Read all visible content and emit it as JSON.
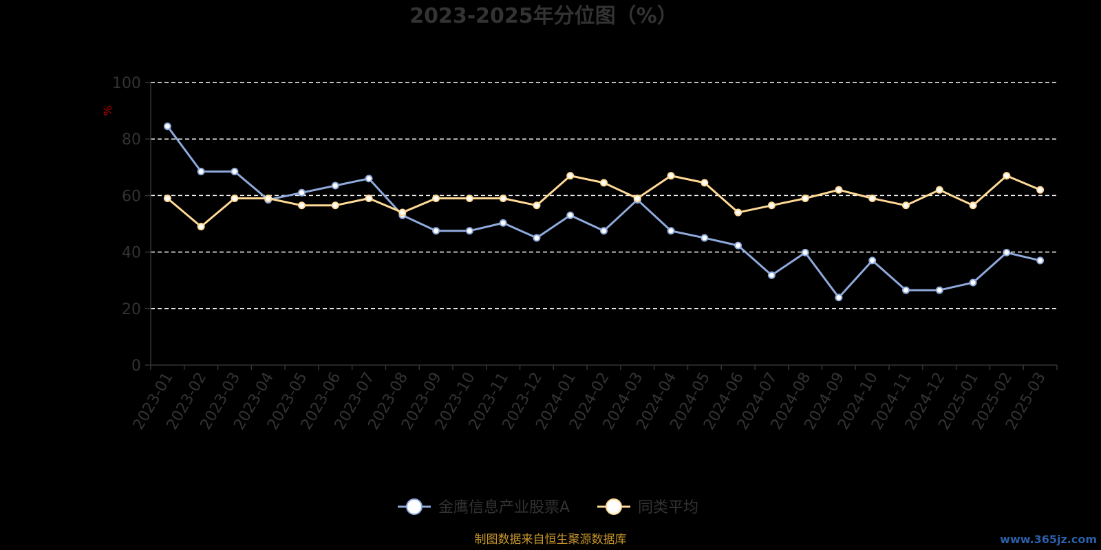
{
  "chart_data": {
    "type": "line",
    "title": "2023-2025年分位图（%）",
    "ylabel": "%",
    "ylim": [
      0,
      100
    ],
    "yticks": [
      0,
      20,
      40,
      60,
      80,
      100
    ],
    "grid": true,
    "legend_position": "bottom-center",
    "categories": [
      "2023-01",
      "2023-02",
      "2023-03",
      "2023-04",
      "2023-05",
      "2023-06",
      "2023-07",
      "2023-08",
      "2023-09",
      "2023-10",
      "2023-11",
      "2023-12",
      "2024-01",
      "2024-02",
      "2024-03",
      "2024-04",
      "2024-05",
      "2024-06",
      "2024-07",
      "2024-08",
      "2024-09",
      "2024-10",
      "2024-11",
      "2024-12",
      "2025-01",
      "2025-02",
      "2025-03"
    ],
    "series": [
      {
        "name": "金鹰信息产业股票A",
        "color": "#8faadc",
        "values": [
          84.5,
          68.5,
          68.5,
          58.5,
          61,
          63.5,
          66,
          53,
          47.5,
          47.5,
          50.3,
          45,
          53,
          47.5,
          58.5,
          47.5,
          45,
          42.3,
          31.8,
          39.8,
          23.9,
          37,
          26.5,
          26.5,
          29.2,
          39.8,
          37
        ]
      },
      {
        "name": "同类平均",
        "color": "#ffd996",
        "values": [
          59,
          49,
          59,
          59,
          56.5,
          56.5,
          59,
          54,
          59,
          59,
          59,
          56.5,
          67,
          64.5,
          59,
          67,
          64.5,
          54,
          56.5,
          59,
          62,
          59,
          56.5,
          62,
          56.5,
          67,
          62
        ]
      }
    ]
  },
  "footer": {
    "source": "制图数据来自恒生聚源数据库",
    "watermark": "www.365jz.com"
  }
}
